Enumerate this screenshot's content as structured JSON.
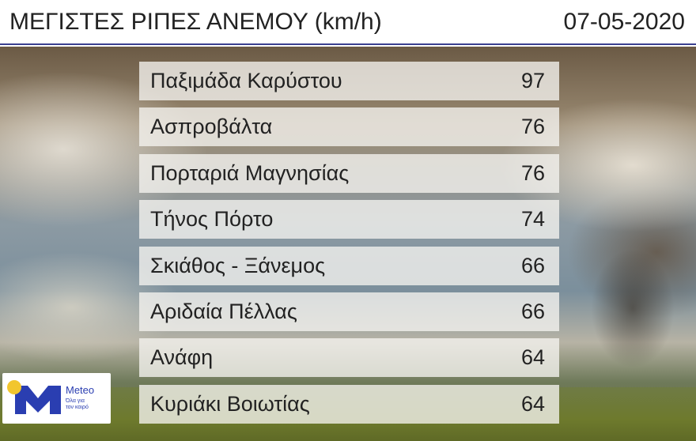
{
  "header": {
    "title": "ΜΕΓΙΣΤΕΣ ΡΙΠΕΣ ΑΝΕΜΟΥ (km/h)",
    "date": "07-05-2020"
  },
  "rows": [
    {
      "station": "Παξιμάδα Καρύστου",
      "value": "97"
    },
    {
      "station": "Ασπροβάλτα",
      "value": "76"
    },
    {
      "station": "Πορταριά Μαγνησίας",
      "value": "76"
    },
    {
      "station": "Τήνος Πόρτο",
      "value": "74"
    },
    {
      "station": "Σκιάθος - Ξάνεμος",
      "value": "66"
    },
    {
      "station": "Αριδαία Πέλλας",
      "value": "66"
    },
    {
      "station": "Ανάφη",
      "value": "64"
    },
    {
      "station": "Κυριάκι Βοιωτίας",
      "value": "64"
    }
  ],
  "logo": {
    "brand": "Meteo",
    "tagline_1": "Όλα για",
    "tagline_2": "τον καιρό"
  },
  "colors": {
    "brand_blue": "#2a3eb1",
    "sun_yellow": "#f2c62e"
  }
}
